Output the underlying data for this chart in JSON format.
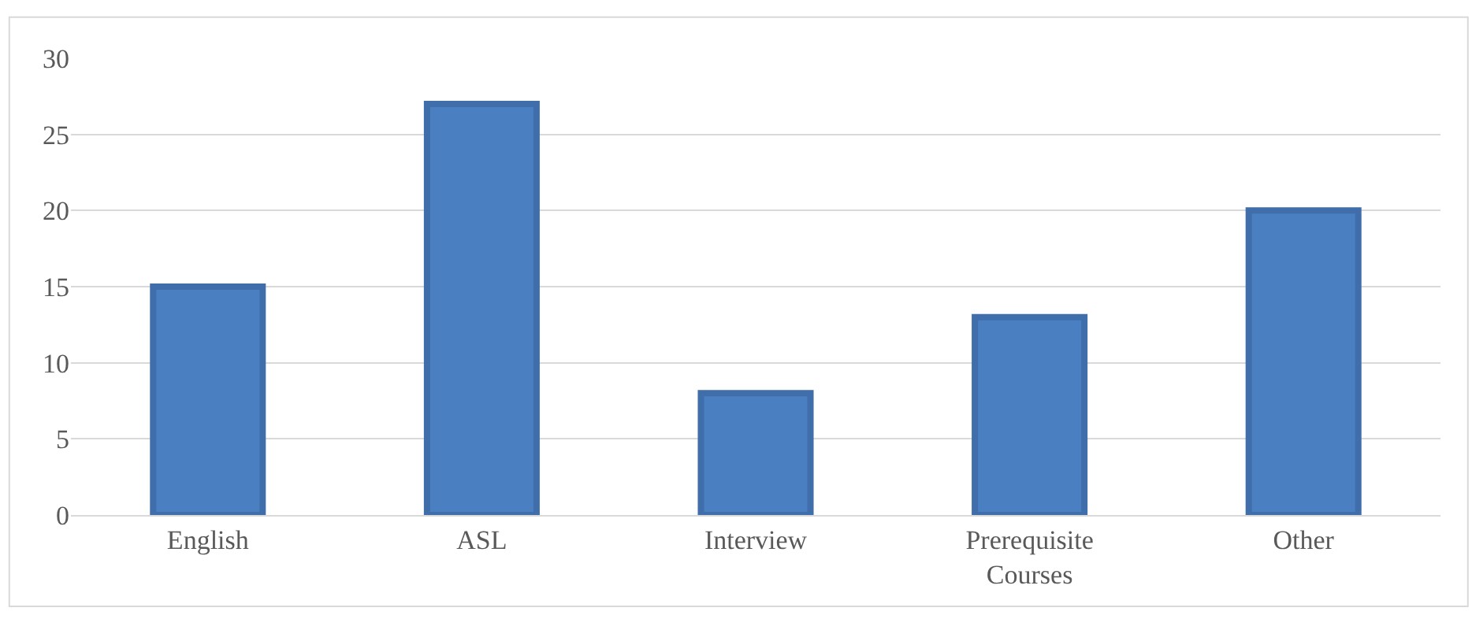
{
  "chart_data": {
    "type": "bar",
    "categories": [
      "English",
      "ASL",
      "Interview",
      "Prerequisite Courses",
      "Other"
    ],
    "values": [
      15,
      27,
      8,
      13,
      20
    ],
    "color": "#4a7fc1",
    "ylim": [
      0,
      30
    ],
    "yticks": [
      0,
      5,
      10,
      15,
      20,
      25,
      30
    ],
    "grid": "y"
  }
}
